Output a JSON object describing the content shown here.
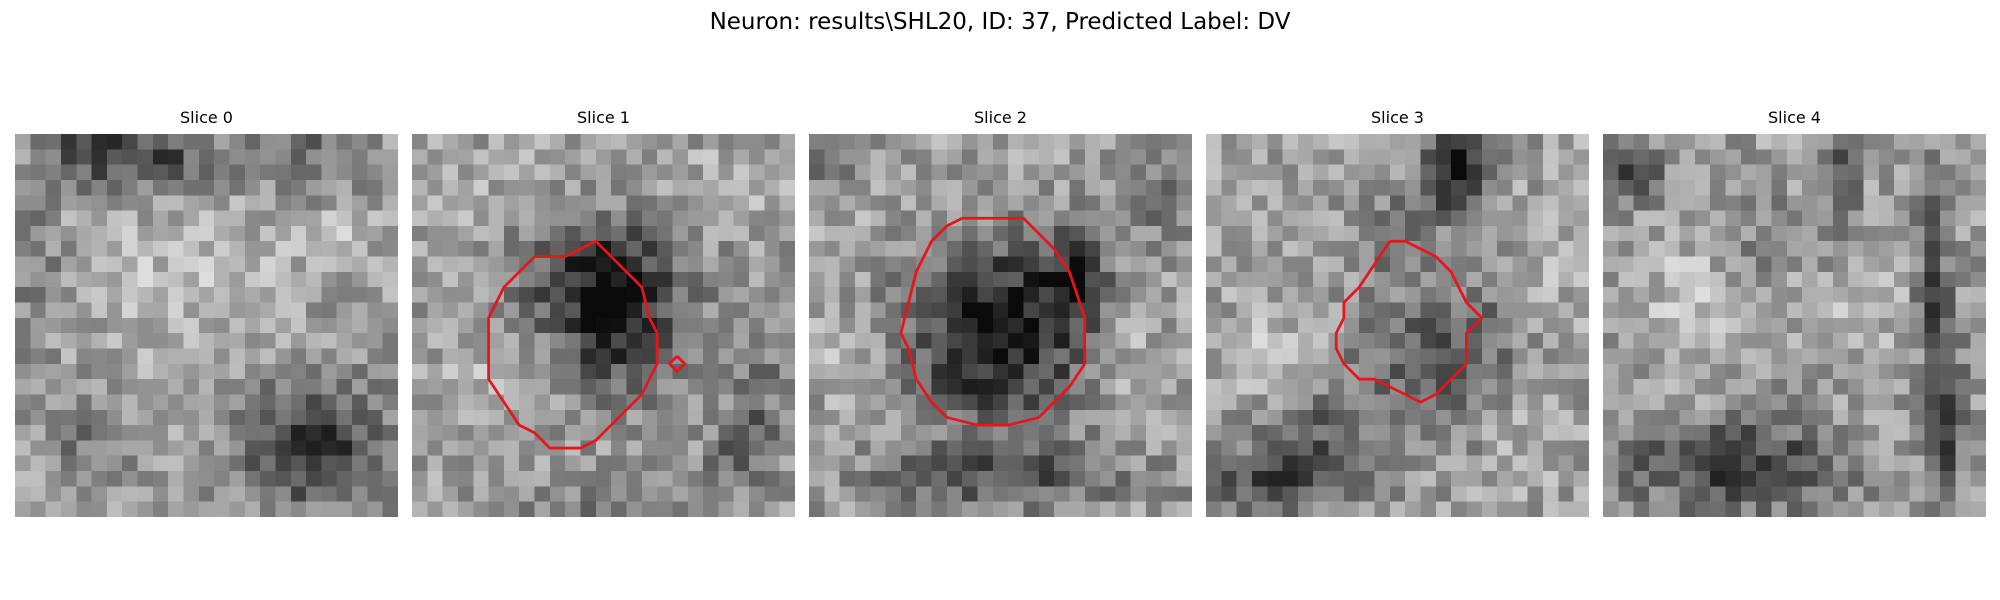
{
  "figure": {
    "title": "Neuron: results\\SHL20, ID: 37, Predicted Label: DV"
  },
  "panels": [
    {
      "title": "Slice 0",
      "has_contour": false
    },
    {
      "title": "Slice 1",
      "has_contour": true
    },
    {
      "title": "Slice 2",
      "has_contour": true
    },
    {
      "title": "Slice 3",
      "has_contour": true
    },
    {
      "title": "Slice 4",
      "has_contour": false
    }
  ],
  "colors": {
    "contour": "#e8141b",
    "background": "#ffffff"
  },
  "image": {
    "colormap": "gray",
    "grid_resolution": 25
  }
}
